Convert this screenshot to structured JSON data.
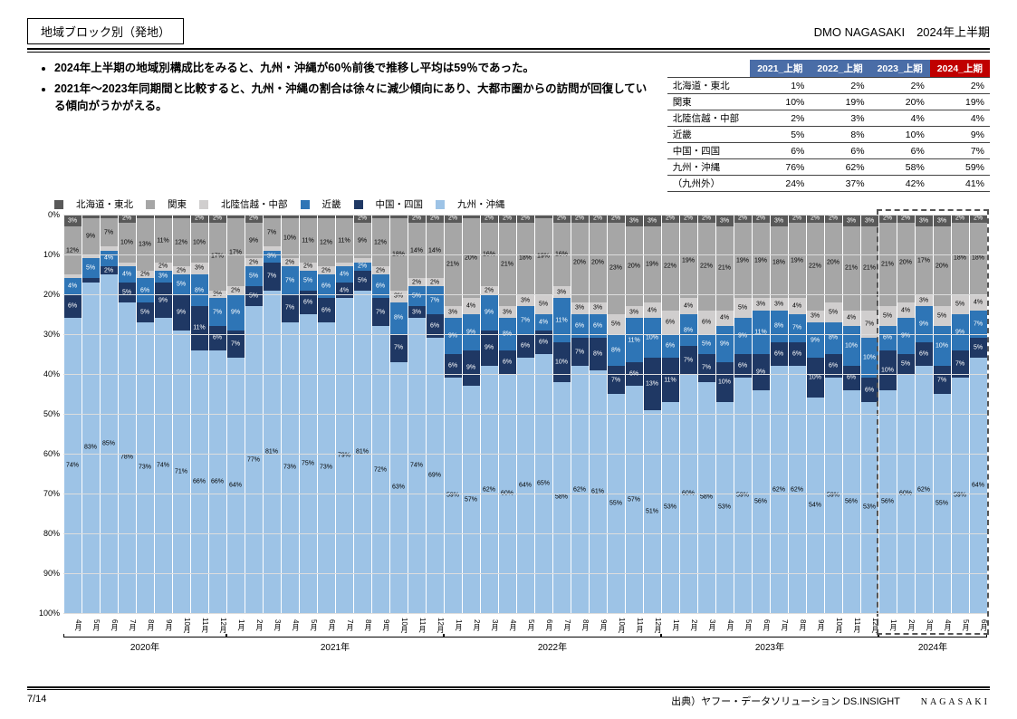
{
  "header": {
    "title": "地域ブロック別（発地）",
    "right": "DMO NAGASAKI　2024年上半期"
  },
  "bullets": [
    "2024年上半期の地域別構成比をみると、九州・沖縄が60％前後で推移し平均は59％であった。",
    "2021年～2023年同期間と比較すると、九州・沖縄の割合は徐々に減少傾向にあり、大都市圏からの訪問が回復している傾向がうかがえる。"
  ],
  "summary_table": {
    "columns": [
      "2021_上期",
      "2022_上期",
      "2023_上期",
      "2024_上期"
    ],
    "header_colors": [
      "#4a6da7",
      "#4a6da7",
      "#4a6da7",
      "#c00000"
    ],
    "rows": [
      {
        "label": "北海道・東北",
        "vals": [
          "1%",
          "2%",
          "2%",
          "2%"
        ]
      },
      {
        "label": "関東",
        "vals": [
          "10%",
          "19%",
          "20%",
          "19%"
        ]
      },
      {
        "label": "北陸信越・中部",
        "vals": [
          "2%",
          "3%",
          "4%",
          "4%"
        ]
      },
      {
        "label": "近畿",
        "vals": [
          "5%",
          "8%",
          "10%",
          "9%"
        ]
      },
      {
        "label": "中国・四国",
        "vals": [
          "6%",
          "6%",
          "6%",
          "7%"
        ]
      },
      {
        "label": "九州・沖縄",
        "vals": [
          "76%",
          "62%",
          "58%",
          "59%"
        ]
      },
      {
        "label": "（九州外）",
        "vals": [
          "24%",
          "37%",
          "42%",
          "41%"
        ]
      }
    ]
  },
  "legend": [
    {
      "label": "北海道・東北",
      "color": "#595959"
    },
    {
      "label": "関東",
      "color": "#a6a6a6"
    },
    {
      "label": "北陸信越・中部",
      "color": "#d0cece"
    },
    {
      "label": "近畿",
      "color": "#2e75b6"
    },
    {
      "label": "中国・四国",
      "color": "#1f3864"
    },
    {
      "label": "九州・沖縄",
      "color": "#9dc3e6"
    }
  ],
  "chart": {
    "type": "stacked-bar-100",
    "y_ticks": [
      0,
      10,
      20,
      30,
      40,
      50,
      60,
      70,
      80,
      90,
      100
    ],
    "ylim": [
      0,
      100
    ],
    "colors": {
      "hokkaido": "#595959",
      "kanto": "#a6a6a6",
      "hokuriku": "#d0cece",
      "kinki": "#2e75b6",
      "chugoku": "#1f3864",
      "kyushu": "#9dc3e6"
    },
    "label_text_color": {
      "hokkaido": "#fff",
      "kanto": "#000",
      "hokuriku": "#000",
      "kinki": "#fff",
      "chugoku": "#fff",
      "kyushu": "#000"
    },
    "year_groups": [
      {
        "label": "2020年",
        "span": 9
      },
      {
        "label": "2021年",
        "span": 12
      },
      {
        "label": "2022年",
        "span": 12
      },
      {
        "label": "2023年",
        "span": 12
      },
      {
        "label": "2024年",
        "span": 6
      }
    ],
    "highlight_last_n": 6,
    "months": [
      {
        "m": "4月",
        "h": 3,
        "ka": 12,
        "ho": 1,
        "ki": 4,
        "ch": 6,
        "ky": 74
      },
      {
        "m": "5月",
        "h": 1,
        "ka": 9,
        "ho": 1,
        "ki": 5,
        "ch": 1,
        "ky": 83
      },
      {
        "m": "6月",
        "h": 1,
        "ka": 7,
        "ho": 1,
        "ki": 4,
        "ch": 2,
        "ky": 85
      },
      {
        "m": "7月",
        "h": 2,
        "ka": 10,
        "ho": 1,
        "ki": 4,
        "ch": 5,
        "ky": 78
      },
      {
        "m": "8月",
        "h": 1,
        "ka": 13,
        "ho": 2,
        "ki": 6,
        "ch": 5,
        "ky": 73
      },
      {
        "m": "9月",
        "h": 1,
        "ka": 11,
        "ho": 2,
        "ki": 3,
        "ch": 9,
        "ky": 74
      },
      {
        "m": "10月",
        "h": 1,
        "ka": 12,
        "ho": 2,
        "ki": 5,
        "ch": 9,
        "ky": 71
      },
      {
        "m": "11月",
        "h": 2,
        "ka": 10,
        "ho": 3,
        "ki": 8,
        "ch": 11,
        "ky": 66
      },
      {
        "m": "12月",
        "h": 2,
        "ka": 17,
        "ho": 2,
        "ki": 7,
        "ch": 6,
        "ky": 66
      },
      {
        "m": "1月",
        "h": 1,
        "ka": 17,
        "ho": 2,
        "ki": 9,
        "ch": 7,
        "ky": 64
      },
      {
        "m": "2月",
        "h": 2,
        "ka": 9,
        "ho": 2,
        "ki": 5,
        "ch": 5,
        "ky": 77
      },
      {
        "m": "3月",
        "h": 1,
        "ka": 7,
        "ho": 1,
        "ki": 3,
        "ch": 7,
        "ky": 81
      },
      {
        "m": "4月",
        "h": 1,
        "ka": 10,
        "ho": 2,
        "ki": 7,
        "ch": 7,
        "ky": 73
      },
      {
        "m": "5月",
        "h": 1,
        "ka": 11,
        "ho": 2,
        "ki": 5,
        "ch": 6,
        "ky": 75
      },
      {
        "m": "6月",
        "h": 1,
        "ka": 12,
        "ho": 2,
        "ki": 6,
        "ch": 6,
        "ky": 73
      },
      {
        "m": "7月",
        "h": 1,
        "ka": 11,
        "ho": 1,
        "ki": 4,
        "ch": 4,
        "ky": 79
      },
      {
        "m": "8月",
        "h": 2,
        "ka": 9,
        "ho": 1,
        "ki": 2,
        "ch": 5,
        "ky": 81
      },
      {
        "m": "9月",
        "h": 1,
        "ka": 12,
        "ho": 2,
        "ki": 6,
        "ch": 7,
        "ky": 72
      },
      {
        "m": "10月",
        "h": 1,
        "ka": 18,
        "ho": 3,
        "ki": 8,
        "ch": 7,
        "ky": 63
      },
      {
        "m": "11月",
        "h": 2,
        "ka": 14,
        "ho": 2,
        "ki": 5,
        "ch": 3,
        "ky": 74
      },
      {
        "m": "12月",
        "h": 2,
        "ka": 14,
        "ho": 2,
        "ki": 7,
        "ch": 6,
        "ky": 69
      },
      {
        "m": "1月",
        "h": 2,
        "ka": 21,
        "ho": 3,
        "ki": 9,
        "ch": 6,
        "ky": 59
      },
      {
        "m": "2月",
        "h": 1,
        "ka": 20,
        "ho": 4,
        "ki": 9,
        "ch": 9,
        "ky": 57
      },
      {
        "m": "3月",
        "h": 2,
        "ka": 16,
        "ho": 2,
        "ki": 9,
        "ch": 9,
        "ky": 62
      },
      {
        "m": "4月",
        "h": 2,
        "ka": 21,
        "ho": 3,
        "ki": 8,
        "ch": 6,
        "ky": 60
      },
      {
        "m": "5月",
        "h": 2,
        "ka": 18,
        "ho": 3,
        "ki": 7,
        "ch": 6,
        "ky": 64
      },
      {
        "m": "6月",
        "h": 1,
        "ka": 19,
        "ho": 5,
        "ki": 4,
        "ch": 6,
        "ky": 65
      },
      {
        "m": "7月",
        "h": 2,
        "ka": 16,
        "ho": 3,
        "ki": 11,
        "ch": 10,
        "ky": 58
      },
      {
        "m": "8月",
        "h": 2,
        "ka": 20,
        "ho": 3,
        "ki": 6,
        "ch": 7,
        "ky": 62
      },
      {
        "m": "9月",
        "h": 2,
        "ka": 20,
        "ho": 3,
        "ki": 6,
        "ch": 8,
        "ky": 61
      },
      {
        "m": "10月",
        "h": 2,
        "ka": 23,
        "ho": 5,
        "ki": 8,
        "ch": 7,
        "ky": 55
      },
      {
        "m": "11月",
        "h": 3,
        "ka": 20,
        "ho": 3,
        "ki": 11,
        "ch": 6,
        "ky": 57
      },
      {
        "m": "12月",
        "h": 3,
        "ka": 19,
        "ho": 4,
        "ki": 10,
        "ch": 13,
        "ky": 51
      },
      {
        "m": "1月",
        "h": 2,
        "ka": 22,
        "ho": 6,
        "ki": 6,
        "ch": 11,
        "ky": 53
      },
      {
        "m": "2月",
        "h": 2,
        "ka": 19,
        "ho": 4,
        "ki": 8,
        "ch": 7,
        "ky": 60
      },
      {
        "m": "3月",
        "h": 2,
        "ka": 22,
        "ho": 6,
        "ki": 5,
        "ch": 7,
        "ky": 58
      },
      {
        "m": "4月",
        "h": 3,
        "ka": 21,
        "ho": 4,
        "ki": 9,
        "ch": 10,
        "ky": 53
      },
      {
        "m": "5月",
        "h": 2,
        "ka": 19,
        "ho": 5,
        "ki": 9,
        "ch": 6,
        "ky": 59
      },
      {
        "m": "6月",
        "h": 2,
        "ka": 19,
        "ho": 3,
        "ki": 11,
        "ch": 9,
        "ky": 56
      },
      {
        "m": "7月",
        "h": 3,
        "ka": 18,
        "ho": 3,
        "ki": 8,
        "ch": 6,
        "ky": 62
      },
      {
        "m": "8月",
        "h": 2,
        "ka": 19,
        "ho": 4,
        "ki": 7,
        "ch": 6,
        "ky": 62
      },
      {
        "m": "9月",
        "h": 2,
        "ka": 22,
        "ho": 3,
        "ki": 9,
        "ch": 10,
        "ky": 54
      },
      {
        "m": "10月",
        "h": 2,
        "ka": 20,
        "ho": 5,
        "ki": 8,
        "ch": 6,
        "ky": 59
      },
      {
        "m": "11月",
        "h": 3,
        "ka": 21,
        "ho": 4,
        "ki": 10,
        "ch": 6,
        "ky": 56
      },
      {
        "m": "12月",
        "h": 3,
        "ka": 21,
        "ho": 7,
        "ki": 10,
        "ch": 6,
        "ky": 53
      },
      {
        "m": "1月",
        "h": 2,
        "ka": 21,
        "ho": 5,
        "ki": 6,
        "ch": 10,
        "ky": 56
      },
      {
        "m": "2月",
        "h": 2,
        "ka": 20,
        "ho": 4,
        "ki": 9,
        "ch": 5,
        "ky": 60
      },
      {
        "m": "3月",
        "h": 3,
        "ka": 17,
        "ho": 3,
        "ki": 9,
        "ch": 6,
        "ky": 62
      },
      {
        "m": "4月",
        "h": 3,
        "ka": 20,
        "ho": 5,
        "ki": 10,
        "ch": 7,
        "ky": 55
      },
      {
        "m": "5月",
        "h": 2,
        "ka": 18,
        "ho": 5,
        "ki": 9,
        "ch": 7,
        "ky": 59
      },
      {
        "m": "6月",
        "h": 2,
        "ka": 18,
        "ho": 4,
        "ki": 7,
        "ch": 5,
        "ky": 64
      }
    ],
    "label_min_pct": 2
  },
  "footer": {
    "page": "7/14",
    "source": "出典）ヤフー・データソリューション DS.INSIGHT",
    "logo": "NAGASAKI"
  }
}
